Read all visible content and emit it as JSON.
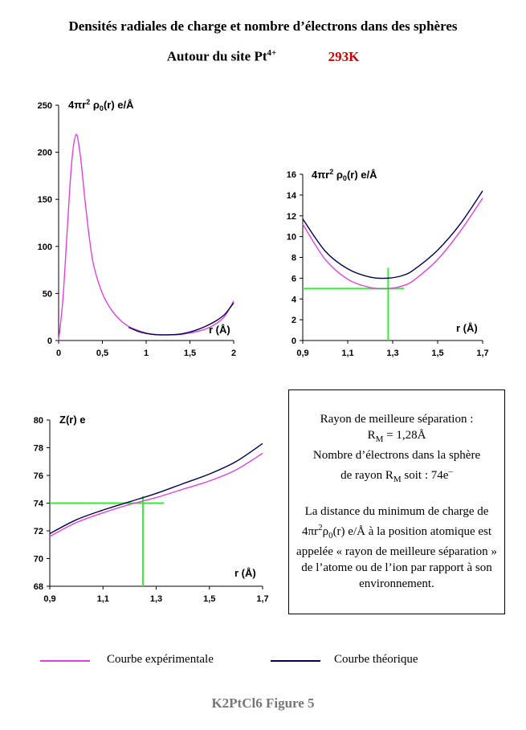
{
  "header": {
    "title": "Densités radiales de charge et nombre d’électrons dans des sphères",
    "subtitle": "Autour du site Pt",
    "subtitle_sup": "4+",
    "temperature": "293K"
  },
  "colors": {
    "experimental": "#e040e0",
    "theoretical": "#000050",
    "marker": "#33ee33",
    "temperature": "#d00000"
  },
  "chart_data": [
    {
      "type": "line",
      "ylabel_main": "4πr",
      "ylabel_sup": "2",
      "ylabel_rho": "ρ",
      "ylabel_sub": "0",
      "ylabel_tail": "(r) e/Å",
      "xlabel": "r (Å)",
      "xlim": [
        0,
        2
      ],
      "ylim": [
        0,
        250
      ],
      "xticks": [
        0,
        0.5,
        1,
        1.5,
        2
      ],
      "xtick_labels": [
        "0",
        "0,5",
        "1",
        "1,5",
        "2"
      ],
      "yticks": [
        0,
        50,
        100,
        150,
        200,
        250
      ],
      "ytick_labels": [
        "0",
        "50",
        "100",
        "150",
        "200",
        "250"
      ],
      "series": [
        {
          "name": "Courbe expérimentale",
          "color": "#e040e0",
          "x": [
            0,
            0.05,
            0.1,
            0.15,
            0.2,
            0.25,
            0.3,
            0.35,
            0.4,
            0.5,
            0.6,
            0.7,
            0.8,
            0.9,
            1.0,
            1.1,
            1.2,
            1.3,
            1.4,
            1.5,
            1.6,
            1.7,
            1.8,
            1.9,
            2.0
          ],
          "y": [
            0,
            45,
            120,
            190,
            219,
            195,
            150,
            110,
            80,
            50,
            33,
            22,
            15,
            11,
            8,
            6.5,
            6,
            6,
            6.5,
            8,
            10,
            13,
            18,
            26,
            42
          ]
        },
        {
          "name": "Courbe théorique",
          "color": "#000050",
          "x": [
            0.8,
            0.9,
            1.0,
            1.1,
            1.2,
            1.3,
            1.4,
            1.5,
            1.6,
            1.7,
            1.8,
            1.9,
            2.0
          ],
          "y": [
            14,
            10,
            7.5,
            6.2,
            6,
            6.2,
            7,
            9,
            12,
            16,
            21,
            28,
            40
          ]
        }
      ]
    },
    {
      "type": "line",
      "ylabel_main": "4πr",
      "ylabel_sup": "2",
      "ylabel_rho": "ρ",
      "ylabel_sub": "0",
      "ylabel_tail": "(r) e/Å",
      "xlabel": "r (Å)",
      "xlim": [
        0.9,
        1.7
      ],
      "ylim": [
        0,
        16
      ],
      "xticks": [
        0.9,
        1.1,
        1.3,
        1.5,
        1.7
      ],
      "xtick_labels": [
        "0,9",
        "1,1",
        "1,3",
        "1,5",
        "1,7"
      ],
      "yticks": [
        0,
        2,
        4,
        6,
        8,
        10,
        12,
        14,
        16
      ],
      "ytick_labels": [
        "0",
        "2",
        "4",
        "6",
        "8",
        "10",
        "12",
        "14",
        "16"
      ],
      "marker": {
        "x": 1.28,
        "y": 5,
        "h_from": 0.9,
        "h_to": 1.35,
        "v_from": 0,
        "v_to": 7
      },
      "series": [
        {
          "name": "Courbe expérimentale",
          "color": "#e040e0",
          "x": [
            0.9,
            1.0,
            1.1,
            1.2,
            1.28,
            1.35,
            1.4,
            1.5,
            1.6,
            1.7
          ],
          "y": [
            11.2,
            7.8,
            5.9,
            5.1,
            5.0,
            5.3,
            5.9,
            7.8,
            10.5,
            13.7
          ]
        },
        {
          "name": "Courbe théorique",
          "color": "#000050",
          "x": [
            0.9,
            1.0,
            1.1,
            1.2,
            1.28,
            1.35,
            1.4,
            1.5,
            1.6,
            1.7
          ],
          "y": [
            11.7,
            8.6,
            6.9,
            6.1,
            6.0,
            6.3,
            6.9,
            8.7,
            11.2,
            14.4
          ]
        }
      ]
    },
    {
      "type": "line",
      "ylabel_main": "Z(r) e",
      "xlabel": "r (Å)",
      "xlim": [
        0.9,
        1.7
      ],
      "ylim": [
        68,
        80
      ],
      "xticks": [
        0.9,
        1.1,
        1.3,
        1.5,
        1.7
      ],
      "xtick_labels": [
        "0,9",
        "1,1",
        "1,3",
        "1,5",
        "1,7"
      ],
      "yticks": [
        68,
        70,
        72,
        74,
        76,
        78,
        80
      ],
      "ytick_labels": [
        "68",
        "70",
        "72",
        "74",
        "76",
        "78",
        "80"
      ],
      "marker": {
        "x": 1.25,
        "y": 74,
        "h_from": 0.9,
        "h_to": 1.33,
        "v_from": 68,
        "v_to": 74.5
      },
      "series": [
        {
          "name": "Courbe expérimentale",
          "color": "#e040e0",
          "x": [
            0.9,
            1.0,
            1.1,
            1.2,
            1.3,
            1.4,
            1.5,
            1.6,
            1.7
          ],
          "y": [
            71.6,
            72.6,
            73.3,
            73.9,
            74.4,
            75.0,
            75.6,
            76.4,
            77.6
          ]
        },
        {
          "name": "Courbe théorique",
          "color": "#000050",
          "x": [
            0.9,
            1.0,
            1.1,
            1.2,
            1.3,
            1.4,
            1.5,
            1.6,
            1.7
          ],
          "y": [
            71.8,
            72.8,
            73.5,
            74.1,
            74.7,
            75.4,
            76.1,
            77.0,
            78.3
          ]
        }
      ]
    }
  ],
  "info_box": {
    "line1": "Rayon de meilleure séparation :",
    "rm_sym": "R",
    "rm_sub": "M",
    "rm_value": " = 1,28Å",
    "line3": "Nombre d’électrons dans la sphère",
    "line4_a": "de rayon R",
    "line4_sub": "M",
    "line4_b": " soit : 74e",
    "line4_sup": "–",
    "para2_a": "La distance du minimum de charge de 4πr",
    "para2_sup": "2",
    "para2_rho": "ρ",
    "para2_sub": "0",
    "para2_b": "(r) e/Å à la position atomique est appelée « rayon de meilleure séparation » de l’atome ou de l’ion par rapport à son environnement."
  },
  "legend": {
    "experimental": "Courbe expérimentale",
    "theoretical": "Courbe théorique"
  },
  "footer": "K2PtCl6 Figure 5"
}
